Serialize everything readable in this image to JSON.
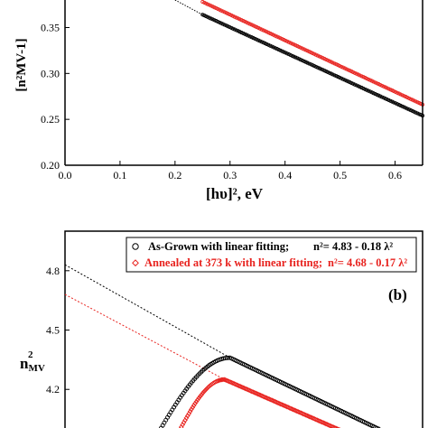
{
  "chart_data": [
    {
      "type": "scatter",
      "panel": "top",
      "xlabel": "[hυ]², eV",
      "ylabel": "[n²MV-1]",
      "xlim": [
        0.0,
        0.65
      ],
      "ylim": [
        0.2,
        0.38
      ],
      "x_ticks": [
        "0.0",
        "0.1",
        "0.2",
        "0.3",
        "0.4",
        "0.5",
        "0.6"
      ],
      "x_tick_values": [
        0.0,
        0.1,
        0.2,
        0.3,
        0.4,
        0.5,
        0.6
      ],
      "y_ticks": [
        "0.20",
        "0.25",
        "0.30",
        "0.35"
      ],
      "y_tick_values": [
        0.2,
        0.25,
        0.3,
        0.35
      ],
      "grid": false,
      "series": [
        {
          "color": "#000000",
          "x_range": [
            0.25,
            0.65
          ],
          "y_range": [
            0.364,
            0.254
          ]
        },
        {
          "color": "#e8231f",
          "x_range": [
            0.25,
            0.65
          ],
          "y_range": [
            0.378,
            0.266
          ]
        }
      ],
      "fit_line": {
        "color": "#000000",
        "style": "dotted",
        "x_range": [
          0.2,
          0.25
        ],
        "y_range": [
          0.38,
          0.364
        ]
      }
    },
    {
      "type": "scatter",
      "panel": "bottom",
      "panel_label": "(b)",
      "ylabel_main": "n",
      "ylabel_sup": "2",
      "ylabel_sub": "MV",
      "xlim": [
        0.0,
        0.65
      ],
      "ylim": [
        3.95,
        5.0
      ],
      "y_ticks": [
        "4.2",
        "4.5",
        "4.8"
      ],
      "y_tick_values": [
        4.2,
        4.5,
        4.8
      ],
      "grid": false,
      "legend": {
        "placement": "top-right",
        "entries": [
          {
            "text": "As-Grown with linear fitting;",
            "eq_main": "n²= 4.83 - 0.18 λ²",
            "color": "#000000",
            "marker": "circle"
          },
          {
            "text": "Annealed at 373 k with linear fitting;",
            "eq_main": "n²= 4.68 - 0.17 λ²",
            "color": "#e8231f",
            "marker": "diamond"
          }
        ]
      },
      "series": [
        {
          "color": "#000000",
          "intercept": 4.83,
          "slope": -0.18,
          "peak": [
            0.3,
            4.36
          ]
        },
        {
          "color": "#e8231f",
          "intercept": 4.68,
          "slope": -0.17,
          "peak": [
            0.29,
            4.25
          ]
        }
      ]
    }
  ]
}
